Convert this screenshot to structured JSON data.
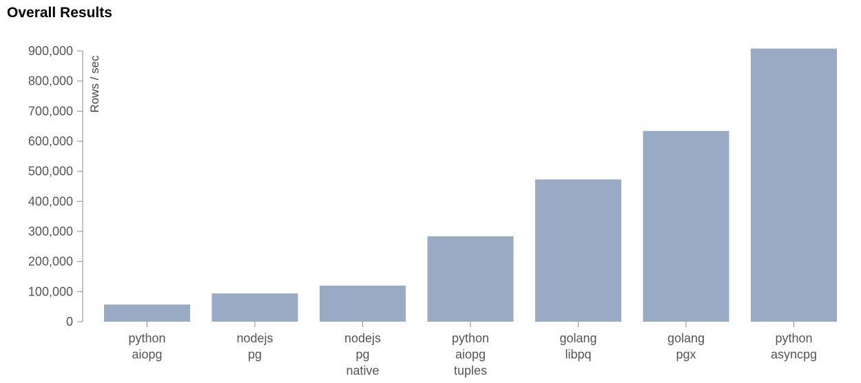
{
  "chart_data": {
    "type": "bar",
    "title": "Overall Results",
    "ylabel": "Rows / sec",
    "xlabel": "",
    "ylim": [
      0,
      900000
    ],
    "yticks": [
      0,
      100000,
      200000,
      300000,
      400000,
      500000,
      600000,
      700000,
      800000,
      900000
    ],
    "ytick_labels": [
      "0",
      "100,000",
      "200,000",
      "300,000",
      "400,000",
      "500,000",
      "600,000",
      "700,000",
      "800,000",
      "900,000"
    ],
    "categories": [
      [
        "python",
        "aiopg"
      ],
      [
        "nodejs",
        "pg"
      ],
      [
        "nodejs",
        "pg",
        "native"
      ],
      [
        "python",
        "aiopg",
        "tuples"
      ],
      [
        "golang",
        "libpq"
      ],
      [
        "golang",
        "pgx"
      ],
      [
        "python",
        "asyncpg"
      ]
    ],
    "values": [
      57000,
      94000,
      120000,
      284000,
      473000,
      634000,
      908000
    ],
    "bar_color": "#99aac4",
    "grid": false
  }
}
